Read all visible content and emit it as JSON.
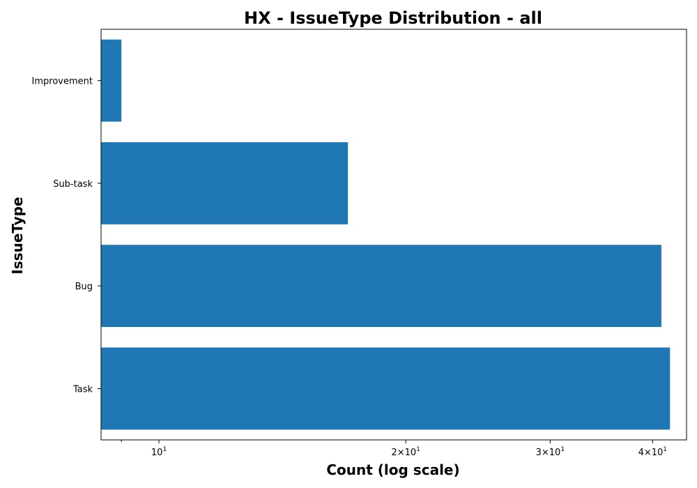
{
  "chart_data": {
    "type": "bar",
    "orientation": "horizontal",
    "title": "HX - IssueType Distribution - all",
    "xlabel": "Count (log scale)",
    "ylabel": "IssueType",
    "x_scale": "log",
    "xlim": [
      8.5,
      44
    ],
    "categories": [
      "Task",
      "Bug",
      "Sub-task",
      "Improvement"
    ],
    "values": [
      42,
      41,
      17,
      9
    ],
    "bar_color": "#1f77b4",
    "x_ticks": [
      {
        "value": 10,
        "base": "10",
        "exp": "1"
      },
      {
        "value": 20,
        "base": "2×10",
        "exp": "1"
      },
      {
        "value": 30,
        "base": "3×10",
        "exp": "1"
      },
      {
        "value": 40,
        "base": "4×10",
        "exp": "1"
      }
    ],
    "x_minor_ticks": [
      9
    ],
    "grid": false,
    "legend": "none"
  }
}
